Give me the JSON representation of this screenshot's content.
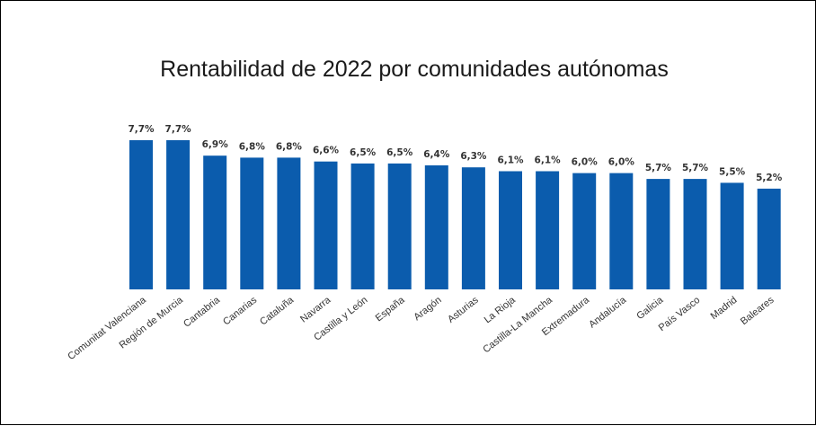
{
  "chart_data": {
    "type": "bar",
    "title": "Rentabilidad de 2022 por comunidades autónomas",
    "categories": [
      "Comunitat Valenciana",
      "Región de Murcia",
      "Cantabria",
      "Canarias",
      "Cataluña",
      "Navarra",
      "Castilla y León",
      "España",
      "Aragón",
      "Asturias",
      "La Rioja",
      "Castilla-La Mancha",
      "Extremadura",
      "Andalucía",
      "Galicia",
      "País Vasco",
      "Madrid",
      "Baleares"
    ],
    "values": [
      7.7,
      7.7,
      6.9,
      6.8,
      6.8,
      6.6,
      6.5,
      6.5,
      6.4,
      6.3,
      6.1,
      6.1,
      6.0,
      6.0,
      5.7,
      5.7,
      5.5,
      5.2
    ],
    "data_labels": [
      "7,7%",
      "7,7%",
      "6,9%",
      "6,8%",
      "6,8%",
      "6,6%",
      "6,5%",
      "6,5%",
      "6,4%",
      "6,3%",
      "6,1%",
      "6,1%",
      "6,0%",
      "6,0%",
      "5,7%",
      "5,7%",
      "5,5%",
      "5,2%"
    ],
    "xlabel": "",
    "ylabel": "",
    "ylim": [
      0,
      7.7
    ],
    "grid": false,
    "legend": "none",
    "bar_color": "#0b5cad"
  }
}
